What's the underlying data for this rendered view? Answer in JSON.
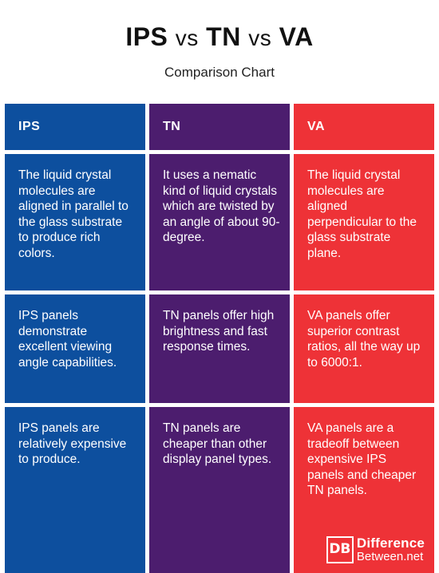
{
  "header": {
    "title_parts": [
      "IPS",
      "vs",
      "TN",
      "vs",
      "VA"
    ],
    "subtitle": "Comparison Chart"
  },
  "columns": [
    {
      "key": "ips",
      "heading": "IPS",
      "rows": [
        "The liquid crystal molecules are aligned in parallel to the glass substrate to produce rich colors.",
        "IPS panels demonstrate excellent viewing angle capabilities.",
        "IPS panels are relatively expensive to produce."
      ]
    },
    {
      "key": "tn",
      "heading": "TN",
      "rows": [
        "It uses a nematic kind of liquid crystals which are twisted by an angle of about 90-degree.",
        "TN panels offer high brightness and fast response times.",
        "TN panels are cheaper than other display panel types."
      ]
    },
    {
      "key": "va",
      "heading": "VA",
      "rows": [
        "The liquid crystal molecules are aligned perpendicular to the glass substrate plane.",
        "VA panels offer superior contrast ratios, all the way up to 6000:1.",
        "VA panels are a tradeoff between expensive IPS panels and cheaper TN panels."
      ]
    }
  ],
  "logo": {
    "mark": "DB",
    "line1": "Difference",
    "line2": "Between.net"
  },
  "colors": {
    "ips": "#0d4f9e",
    "tn": "#4c1d6e",
    "va": "#ee3237"
  }
}
